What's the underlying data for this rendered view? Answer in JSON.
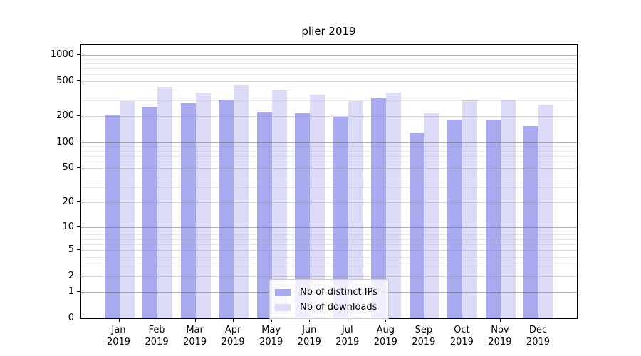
{
  "figure": {
    "title": "plier 2019"
  },
  "colors": {
    "ips": "#a9a9f0",
    "downloads": "#dcdcf8",
    "spine": "#000000"
  },
  "legend": {
    "items": [
      {
        "label": "Nb of distinct IPs",
        "series_key": "ips"
      },
      {
        "label": "Nb of downloads",
        "series_key": "downloads"
      }
    ]
  },
  "axes": {
    "x_months": [
      "Jan",
      "Feb",
      "Mar",
      "Apr",
      "May",
      "Jun",
      "Jul",
      "Aug",
      "Sep",
      "Oct",
      "Nov",
      "Dec"
    ],
    "x_year_line": "2019",
    "y_tick_values": [
      0,
      1,
      2,
      5,
      10,
      20,
      50,
      100,
      200,
      500,
      1000
    ]
  },
  "chart_data": {
    "type": "bar",
    "title": "plier 2019",
    "categories": [
      "Jan 2019",
      "Feb 2019",
      "Mar 2019",
      "Apr 2019",
      "May 2019",
      "Jun 2019",
      "Jul 2019",
      "Aug 2019",
      "Sep 2019",
      "Oct 2019",
      "Nov 2019",
      "Dec 2019"
    ],
    "series": [
      {
        "name": "Nb of distinct IPs",
        "color": "#a9a9f0",
        "values": [
          206,
          253,
          280,
          307,
          225,
          217,
          196,
          317,
          127,
          181,
          182,
          155
        ]
      },
      {
        "name": "Nb of downloads",
        "color": "#dcdcf8",
        "values": [
          299,
          434,
          370,
          457,
          394,
          352,
          297,
          374,
          214,
          303,
          307,
          271
        ]
      }
    ],
    "xlabel": "",
    "ylabel": "",
    "yscale": "log1p",
    "yticks": [
      0,
      1,
      2,
      5,
      10,
      20,
      50,
      100,
      200,
      500,
      1000
    ],
    "ylim": [
      0,
      1250
    ],
    "grid": "both-horizontal",
    "legend_position": "lower center"
  }
}
